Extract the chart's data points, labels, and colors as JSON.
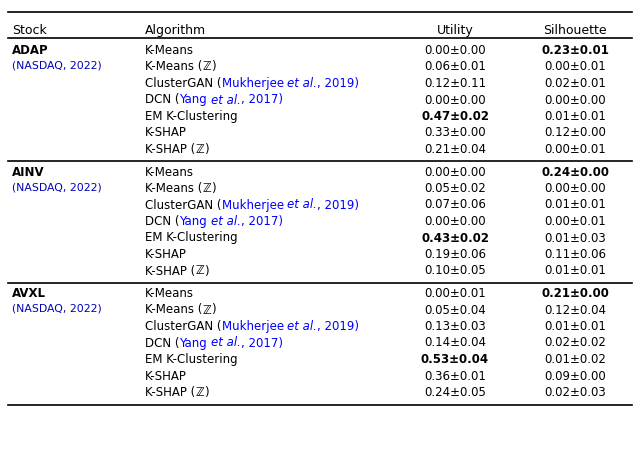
{
  "headers": [
    "Stock",
    "Algorithm",
    "Utility",
    "Silhouette"
  ],
  "stocks": [
    {
      "name": "ADAP",
      "sub": "(NASDAQ, 2022)",
      "rows": [
        {
          "algo_parts": [
            {
              "text": "K-Means",
              "style": "normal",
              "color": "black"
            }
          ],
          "utility": "0.00±0.00",
          "utility_bold": false,
          "silhouette": "0.23±0.01",
          "silhouette_bold": true
        },
        {
          "algo_parts": [
            {
              "text": "K-Means (",
              "style": "normal",
              "color": "black"
            },
            {
              "text": "ℤ",
              "style": "italic",
              "color": "black"
            },
            {
              "text": ")",
              "style": "normal",
              "color": "black"
            }
          ],
          "utility": "0.06±0.01",
          "utility_bold": false,
          "silhouette": "0.00±0.01",
          "silhouette_bold": false
        },
        {
          "algo_parts": [
            {
              "text": "ClusterGAN (",
              "style": "normal",
              "color": "black"
            },
            {
              "text": "Mukherjee ",
              "style": "normal",
              "color": "blue"
            },
            {
              "text": "et al.",
              "style": "italic",
              "color": "blue"
            },
            {
              "text": ", 2019)",
              "style": "normal",
              "color": "blue"
            }
          ],
          "utility": "0.12±0.11",
          "utility_bold": false,
          "silhouette": "0.02±0.01",
          "silhouette_bold": false
        },
        {
          "algo_parts": [
            {
              "text": "DCN (",
              "style": "normal",
              "color": "black"
            },
            {
              "text": "Yang ",
              "style": "normal",
              "color": "blue"
            },
            {
              "text": "et al.",
              "style": "italic",
              "color": "blue"
            },
            {
              "text": ", 2017)",
              "style": "normal",
              "color": "blue"
            }
          ],
          "utility": "0.00±0.00",
          "utility_bold": false,
          "silhouette": "0.00±0.00",
          "silhouette_bold": false
        },
        {
          "algo_parts": [
            {
              "text": "EM K-Clustering",
              "style": "normal",
              "color": "black"
            }
          ],
          "utility": "0.47±0.02",
          "utility_bold": true,
          "silhouette": "0.01±0.01",
          "silhouette_bold": false
        },
        {
          "algo_parts": [
            {
              "text": "K-SHAP",
              "style": "normal",
              "color": "black"
            }
          ],
          "utility": "0.33±0.00",
          "utility_bold": false,
          "silhouette": "0.12±0.00",
          "silhouette_bold": false
        },
        {
          "algo_parts": [
            {
              "text": "K-SHAP (",
              "style": "normal",
              "color": "black"
            },
            {
              "text": "ℤ",
              "style": "italic",
              "color": "black"
            },
            {
              "text": ")",
              "style": "normal",
              "color": "black"
            }
          ],
          "utility": "0.21±0.04",
          "utility_bold": false,
          "silhouette": "0.00±0.01",
          "silhouette_bold": false
        }
      ]
    },
    {
      "name": "AINV",
      "sub": "(NASDAQ, 2022)",
      "rows": [
        {
          "algo_parts": [
            {
              "text": "K-Means",
              "style": "normal",
              "color": "black"
            }
          ],
          "utility": "0.00±0.00",
          "utility_bold": false,
          "silhouette": "0.24±0.00",
          "silhouette_bold": true
        },
        {
          "algo_parts": [
            {
              "text": "K-Means (",
              "style": "normal",
              "color": "black"
            },
            {
              "text": "ℤ",
              "style": "italic",
              "color": "black"
            },
            {
              "text": ")",
              "style": "normal",
              "color": "black"
            }
          ],
          "utility": "0.05±0.02",
          "utility_bold": false,
          "silhouette": "0.00±0.00",
          "silhouette_bold": false
        },
        {
          "algo_parts": [
            {
              "text": "ClusterGAN (",
              "style": "normal",
              "color": "black"
            },
            {
              "text": "Mukherjee ",
              "style": "normal",
              "color": "blue"
            },
            {
              "text": "et al.",
              "style": "italic",
              "color": "blue"
            },
            {
              "text": ", 2019)",
              "style": "normal",
              "color": "blue"
            }
          ],
          "utility": "0.07±0.06",
          "utility_bold": false,
          "silhouette": "0.01±0.01",
          "silhouette_bold": false
        },
        {
          "algo_parts": [
            {
              "text": "DCN (",
              "style": "normal",
              "color": "black"
            },
            {
              "text": "Yang ",
              "style": "normal",
              "color": "blue"
            },
            {
              "text": "et al.",
              "style": "italic",
              "color": "blue"
            },
            {
              "text": ", 2017)",
              "style": "normal",
              "color": "blue"
            }
          ],
          "utility": "0.00±0.00",
          "utility_bold": false,
          "silhouette": "0.00±0.01",
          "silhouette_bold": false
        },
        {
          "algo_parts": [
            {
              "text": "EM K-Clustering",
              "style": "normal",
              "color": "black"
            }
          ],
          "utility": "0.43±0.02",
          "utility_bold": true,
          "silhouette": "0.01±0.03",
          "silhouette_bold": false
        },
        {
          "algo_parts": [
            {
              "text": "K-SHAP",
              "style": "normal",
              "color": "black"
            }
          ],
          "utility": "0.19±0.06",
          "utility_bold": false,
          "silhouette": "0.11±0.06",
          "silhouette_bold": false
        },
        {
          "algo_parts": [
            {
              "text": "K-SHAP (",
              "style": "normal",
              "color": "black"
            },
            {
              "text": "ℤ",
              "style": "italic",
              "color": "black"
            },
            {
              "text": ")",
              "style": "normal",
              "color": "black"
            }
          ],
          "utility": "0.10±0.05",
          "utility_bold": false,
          "silhouette": "0.01±0.01",
          "silhouette_bold": false
        }
      ]
    },
    {
      "name": "AVXL",
      "sub": "(NASDAQ, 2022)",
      "rows": [
        {
          "algo_parts": [
            {
              "text": "K-Means",
              "style": "normal",
              "color": "black"
            }
          ],
          "utility": "0.00±0.01",
          "utility_bold": false,
          "silhouette": "0.21±0.00",
          "silhouette_bold": true
        },
        {
          "algo_parts": [
            {
              "text": "K-Means (",
              "style": "normal",
              "color": "black"
            },
            {
              "text": "ℤ",
              "style": "italic",
              "color": "black"
            },
            {
              "text": ")",
              "style": "normal",
              "color": "black"
            }
          ],
          "utility": "0.05±0.04",
          "utility_bold": false,
          "silhouette": "0.12±0.04",
          "silhouette_bold": false
        },
        {
          "algo_parts": [
            {
              "text": "ClusterGAN (",
              "style": "normal",
              "color": "black"
            },
            {
              "text": "Mukherjee ",
              "style": "normal",
              "color": "blue"
            },
            {
              "text": "et al.",
              "style": "italic",
              "color": "blue"
            },
            {
              "text": ", 2019)",
              "style": "normal",
              "color": "blue"
            }
          ],
          "utility": "0.13±0.03",
          "utility_bold": false,
          "silhouette": "0.01±0.01",
          "silhouette_bold": false
        },
        {
          "algo_parts": [
            {
              "text": "DCN (",
              "style": "normal",
              "color": "black"
            },
            {
              "text": "Yang ",
              "style": "normal",
              "color": "blue"
            },
            {
              "text": "et al.",
              "style": "italic",
              "color": "blue"
            },
            {
              "text": ", 2017)",
              "style": "normal",
              "color": "blue"
            }
          ],
          "utility": "0.14±0.04",
          "utility_bold": false,
          "silhouette": "0.02±0.02",
          "silhouette_bold": false
        },
        {
          "algo_parts": [
            {
              "text": "EM K-Clustering",
              "style": "normal",
              "color": "black"
            }
          ],
          "utility": "0.53±0.04",
          "utility_bold": true,
          "silhouette": "0.01±0.02",
          "silhouette_bold": false
        },
        {
          "algo_parts": [
            {
              "text": "K-SHAP",
              "style": "normal",
              "color": "black"
            }
          ],
          "utility": "0.36±0.01",
          "utility_bold": false,
          "silhouette": "0.09±0.00",
          "silhouette_bold": false
        },
        {
          "algo_parts": [
            {
              "text": "K-SHAP (",
              "style": "normal",
              "color": "black"
            },
            {
              "text": "ℤ",
              "style": "italic",
              "color": "black"
            },
            {
              "text": ")",
              "style": "normal",
              "color": "black"
            }
          ],
          "utility": "0.24±0.05",
          "utility_bold": false,
          "silhouette": "0.02±0.03",
          "silhouette_bold": false
        }
      ]
    }
  ],
  "font_size": 8.5,
  "header_font_size": 9.0,
  "blue_color": "#0000BB",
  "black_color": "#000000",
  "bg_color": "#FFFFFF"
}
